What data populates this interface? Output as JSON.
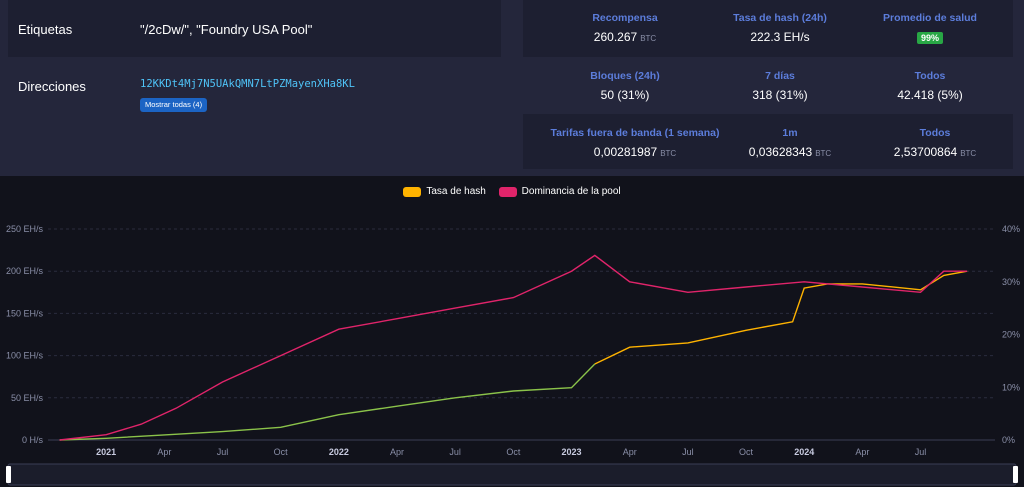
{
  "info": {
    "tags_label": "Etiquetas",
    "tags_value": "\"/2cDw/\", \"Foundry USA Pool\"",
    "addresses_label": "Direcciones",
    "address": "12KKDt4Mj7N5UAkQMN7LtPZMayenXHa8KL",
    "show_all_button": "Mostrar todas (4)"
  },
  "stats": {
    "reward_label": "Recompensa",
    "reward_value": "260.267",
    "reward_unit": "BTC",
    "hashrate_label": "Tasa de hash (24h)",
    "hashrate_value": "222.3 EH/s",
    "health_label": "Promedio de salud",
    "health_value": "99%",
    "blocks24_label": "Bloques (24h)",
    "blocks24_value": "50 (31%)",
    "days7_label": "7 días",
    "days7_value": "318 (31%)",
    "all_label": "Todos",
    "all_value": "42.418 (5%)",
    "fees_label": "Tarifas fuera de banda (1 semana)",
    "fees_value": "0,00281987",
    "fees_unit": "BTC",
    "fees1m_label": "1m",
    "fees1m_value": "0,03628343",
    "fees1m_unit": "BTC",
    "feesall_label": "Todos",
    "feesall_value": "2,53700864",
    "feesall_unit": "BTC"
  },
  "colors": {
    "hashrate": "#ffb300",
    "dominance": "#e0246a",
    "early_hashrate": "#8bc34a"
  },
  "chart_data": {
    "type": "line",
    "legend": [
      "Tasa de hash",
      "Dominancia de la pool"
    ],
    "x_tick_labels": [
      "2021",
      "Apr",
      "Jul",
      "Oct",
      "2022",
      "Apr",
      "Jul",
      "Oct",
      "2023",
      "Apr",
      "Jul",
      "Oct",
      "2024",
      "Apr",
      "Jul"
    ],
    "y_left_ticks": [
      "0 H/s",
      "50 EH/s",
      "100 EH/s",
      "150 EH/s",
      "200 EH/s",
      "250 EH/s"
    ],
    "y_right_ticks": [
      "0%",
      "10%",
      "20%",
      "30%",
      "40%"
    ],
    "y_left_range": [
      0,
      250
    ],
    "y_right_range": [
      0,
      40
    ],
    "series": [
      {
        "name": "Tasa de hash",
        "axis": "left",
        "x": [
          2020.8,
          2021.0,
          2021.25,
          2021.5,
          2021.75,
          2022.0,
          2022.25,
          2022.5,
          2022.75,
          2023.0,
          2023.1,
          2023.25,
          2023.5,
          2023.75,
          2023.95,
          2024.0,
          2024.1,
          2024.25,
          2024.5,
          2024.6,
          2024.7
        ],
        "values": [
          0,
          2,
          6,
          10,
          15,
          30,
          40,
          50,
          58,
          62,
          90,
          110,
          115,
          130,
          140,
          180,
          185,
          185,
          178,
          195,
          200
        ]
      },
      {
        "name": "Dominancia de la pool",
        "axis": "right",
        "x": [
          2020.8,
          2021.0,
          2021.15,
          2021.3,
          2021.5,
          2021.75,
          2022.0,
          2022.25,
          2022.5,
          2022.75,
          2023.0,
          2023.1,
          2023.25,
          2023.5,
          2023.75,
          2024.0,
          2024.25,
          2024.5,
          2024.6,
          2024.7
        ],
        "values": [
          0,
          1,
          3,
          6,
          11,
          16,
          21,
          23,
          25,
          27,
          32,
          35,
          30,
          28,
          29,
          30,
          29,
          28,
          32,
          32
        ]
      }
    ]
  }
}
